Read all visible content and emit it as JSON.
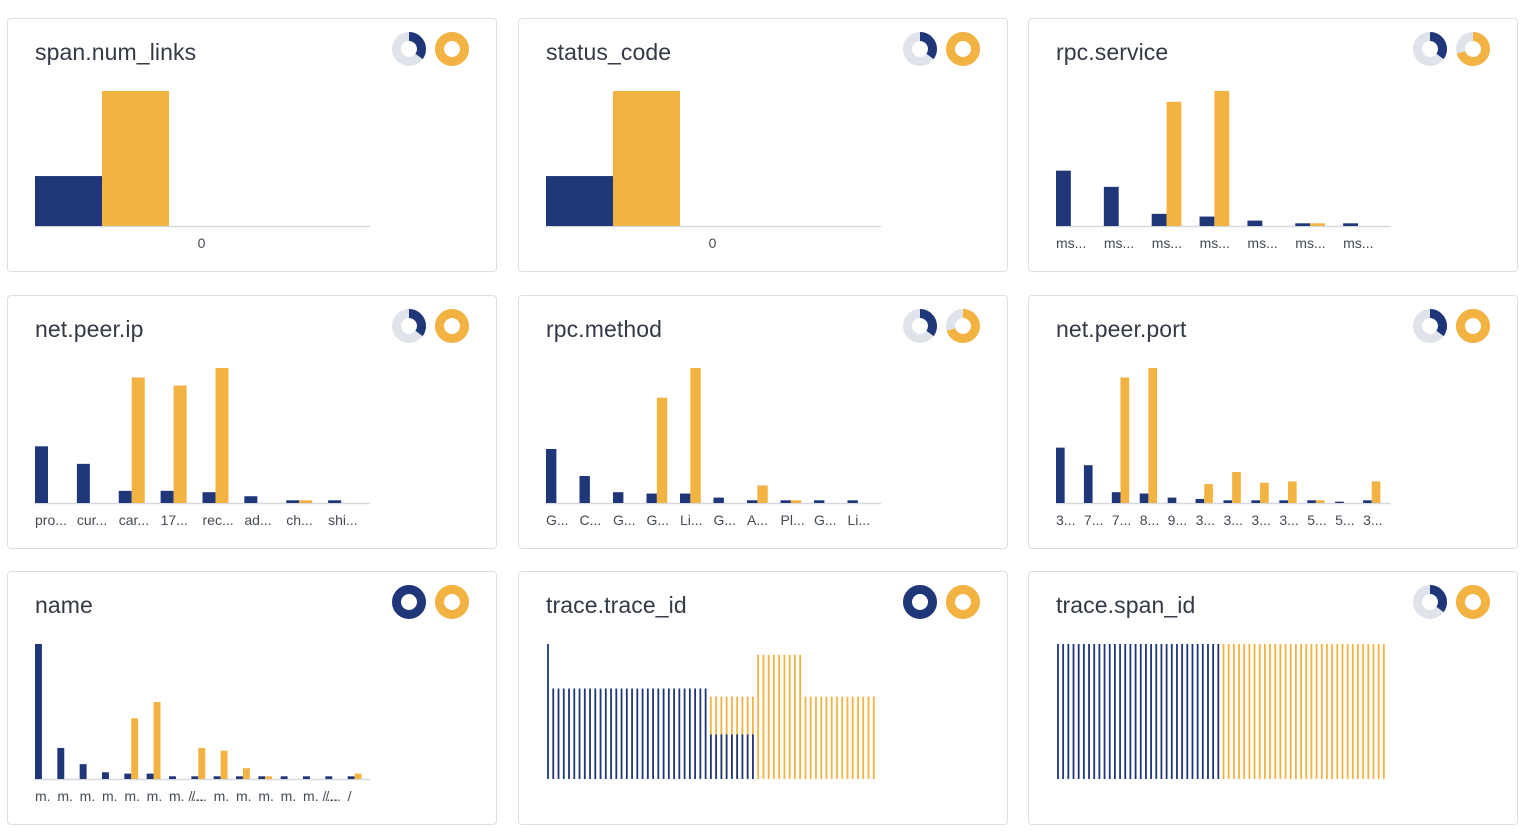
{
  "colors": {
    "blue": "#1f3679",
    "orange": "#f2b342",
    "ring": "#dfe3ea",
    "axis": "#d6d9df"
  },
  "cards": [
    {
      "title": "span.num_links",
      "donut_a": 0.35,
      "donut_b": 1.0,
      "chart_data": {
        "type": "bar",
        "categories": [
          "0"
        ],
        "series": [
          {
            "name": "baseline",
            "values": [
              37
            ]
          },
          {
            "name": "selection",
            "values": [
              100
            ]
          }
        ],
        "ylim": [
          0,
          100
        ],
        "variant": "wide"
      }
    },
    {
      "title": "status_code",
      "donut_a": 0.35,
      "donut_b": 1.0,
      "chart_data": {
        "type": "bar",
        "categories": [
          "0"
        ],
        "series": [
          {
            "name": "baseline",
            "values": [
              37
            ]
          },
          {
            "name": "selection",
            "values": [
              100
            ]
          }
        ],
        "ylim": [
          0,
          100
        ],
        "variant": "wide"
      }
    },
    {
      "title": "rpc.service",
      "donut_a": 0.35,
      "donut_b": 0.7,
      "chart_data": {
        "type": "bar",
        "categories": [
          "ms...",
          "ms...",
          "ms...",
          "ms...",
          "ms...",
          "ms...",
          "ms..."
        ],
        "series": [
          {
            "name": "baseline",
            "values": [
              41,
              29,
              9,
              7,
              4,
              2,
              2
            ]
          },
          {
            "name": "selection",
            "values": [
              0,
              0,
              92,
              100,
              0,
              2,
              0
            ]
          }
        ],
        "ylim": [
          0,
          100
        ]
      }
    },
    {
      "title": "net.peer.ip",
      "donut_a": 0.35,
      "donut_b": 1.0,
      "chart_data": {
        "type": "bar",
        "categories": [
          "pro...",
          "cur...",
          "car...",
          "17...",
          "rec...",
          "ad...",
          "ch...",
          "shi..."
        ],
        "series": [
          {
            "name": "baseline",
            "values": [
              42,
              29,
              9,
              9,
              8,
              5,
              2,
              2
            ]
          },
          {
            "name": "selection",
            "values": [
              0,
              0,
              93,
              87,
              100,
              0,
              2,
              0
            ]
          }
        ],
        "ylim": [
          0,
          100
        ]
      }
    },
    {
      "title": "rpc.method",
      "donut_a": 0.35,
      "donut_b": 0.7,
      "chart_data": {
        "type": "bar",
        "categories": [
          "G...",
          "C...",
          "G...",
          "G...",
          "Li...",
          "G...",
          "A...",
          "Pl...",
          "G...",
          "Li..."
        ],
        "series": [
          {
            "name": "baseline",
            "values": [
              40,
              20,
              8,
              7,
              7,
              4,
              2,
              2,
              2,
              2
            ]
          },
          {
            "name": "selection",
            "values": [
              0,
              0,
              0,
              78,
              100,
              0,
              13,
              2,
              0,
              0
            ]
          }
        ],
        "ylim": [
          0,
          100
        ]
      }
    },
    {
      "title": "net.peer.port",
      "donut_a": 0.35,
      "donut_b": 1.0,
      "chart_data": {
        "type": "bar",
        "categories": [
          "3...",
          "7...",
          "7...",
          "8...",
          "9...",
          "3...",
          "3...",
          "3...",
          "3...",
          "5...",
          "5...",
          "3..."
        ],
        "series": [
          {
            "name": "baseline",
            "values": [
              41,
              28,
              8,
              7,
              4,
              3,
              2,
              2,
              2,
              2,
              1,
              2
            ]
          },
          {
            "name": "selection",
            "values": [
              0,
              0,
              93,
              100,
              0,
              14,
              23,
              15,
              16,
              2,
              0,
              16
            ]
          }
        ],
        "ylim": [
          0,
          100
        ]
      }
    },
    {
      "title": "name",
      "donut_a": 1.0,
      "donut_b": 1.0,
      "chart_data": {
        "type": "bar",
        "categories": [
          "m.",
          "m.",
          "m.",
          "m.",
          "m.",
          "m.",
          "m. /...",
          "/...",
          "m.",
          "m.",
          "m.",
          "m.",
          "m. /...",
          "/...",
          "/"
        ],
        "series": [
          {
            "name": "baseline",
            "values": [
              100,
              23,
              11,
              5,
              4,
              4,
              2,
              2,
              2,
              2,
              2,
              2,
              2,
              2,
              2
            ]
          },
          {
            "name": "selection",
            "values": [
              0,
              0,
              0,
              0,
              45,
              57,
              0,
              23,
              21,
              8,
              2,
              0,
              0,
              0,
              4
            ]
          }
        ],
        "ylim": [
          0,
          100
        ]
      }
    },
    {
      "title": "trace.trace_id",
      "donut_a": 1.0,
      "donut_b": 1.0,
      "chart_data": {
        "type": "strip",
        "categories": [],
        "baseline_segments": [
          {
            "count": 1,
            "level": 100
          },
          {
            "count": 30,
            "level": 67
          }
        ],
        "selection_segments": [
          {
            "count": 9,
            "level": 61,
            "overlay_count": 9,
            "overlay_level": 33
          },
          {
            "count": 9,
            "level": 92
          },
          {
            "count": 14,
            "level": 61
          }
        ]
      }
    },
    {
      "title": "trace.span_id",
      "donut_a": 0.35,
      "donut_b": 1.0,
      "chart_data": {
        "type": "strip",
        "categories": [],
        "baseline_segments": [
          {
            "count": 32,
            "level": 100
          }
        ],
        "selection_segments": [
          {
            "count": 32,
            "level": 100
          }
        ]
      }
    }
  ]
}
